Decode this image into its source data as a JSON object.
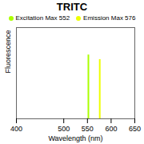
{
  "chart_data": {
    "type": "rule",
    "title": "TRITC",
    "x_label": "Wavelength (nm)",
    "y_label": "Fluorescence",
    "series": [
      {
        "name": "Excitation Max 552",
        "color": "#aaff00",
        "x": [
          552
        ],
        "values": [
          0.7
        ]
      },
      {
        "name": "Emission Max 576",
        "color": "#eeff00",
        "x": [
          576
        ],
        "values": [
          0.65
        ]
      }
    ],
    "xlim": [
      400,
      650
    ],
    "xticks": [
      400,
      500,
      550,
      600,
      650
    ],
    "ylim": [
      0,
      1
    ],
    "yticks": [],
    "tick_labels": "x",
    "legend": "top"
  }
}
